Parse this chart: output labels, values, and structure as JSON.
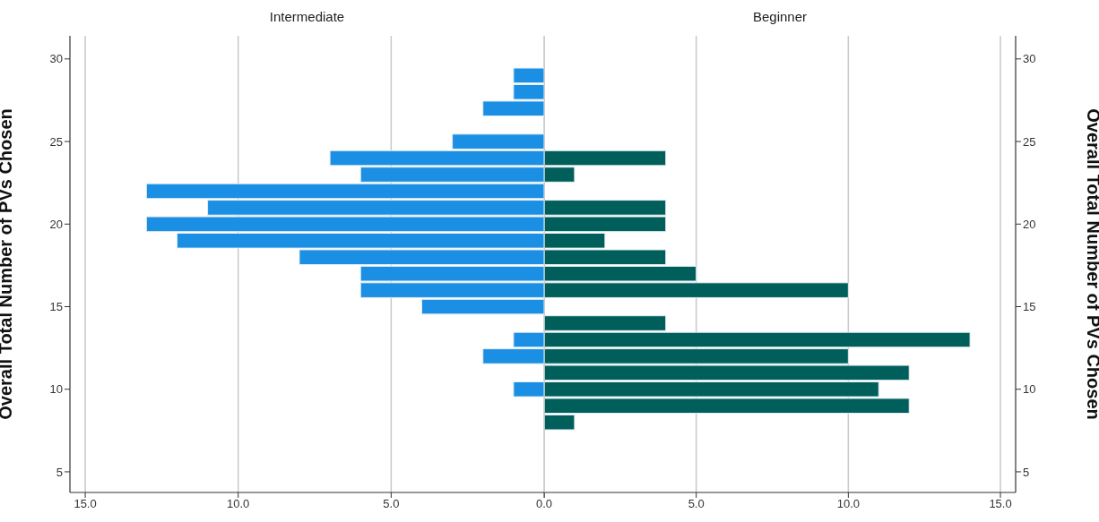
{
  "chart_data": [
    {
      "type": "histogram",
      "title": "Intermediate",
      "orientation": "horizontal",
      "ylabel": "Overall Total Number of PVs Chosen",
      "color": "#1a8fe3",
      "bins": [
        7.5,
        8.5,
        9.5,
        10.5,
        11.5,
        12.5,
        13.5,
        14.5,
        15.5,
        16.5,
        17.5,
        18.5,
        19.5,
        20.5,
        21.5,
        22.5,
        23.5,
        24.5,
        25.5,
        26.5,
        27.5,
        28.5,
        29.5
      ],
      "values": [
        0,
        0,
        1,
        0,
        2,
        1,
        0,
        4,
        6,
        6,
        8,
        12,
        13,
        11,
        13,
        6,
        7,
        3,
        0,
        2,
        1,
        1
      ],
      "xlim": [
        15.5,
        0
      ],
      "xticks": [
        {
          "value": 15,
          "label": "15.0"
        },
        {
          "value": 10,
          "label": "10.0"
        },
        {
          "value": 5,
          "label": "5.0"
        },
        {
          "value": 0,
          "label": "0.0"
        }
      ],
      "ylim": [
        3.75,
        31.4
      ],
      "yticks": [
        5,
        10,
        15,
        20,
        25,
        30
      ],
      "grid": "x"
    },
    {
      "type": "histogram",
      "title": "Beginner",
      "orientation": "horizontal",
      "ylabel": "Overall Total Number of PVs Chosen",
      "color": "#005f5b",
      "bins": [
        7.5,
        8.5,
        9.5,
        10.5,
        11.5,
        12.5,
        13.5,
        14.5,
        15.5,
        16.5,
        17.5,
        18.5,
        19.5,
        20.5,
        21.5,
        22.5,
        23.5,
        24.5,
        25.5,
        26.5,
        27.5,
        28.5,
        29.5
      ],
      "values": [
        1,
        12,
        11,
        12,
        10,
        14,
        4,
        0,
        10,
        5,
        4,
        2,
        4,
        4,
        0,
        1,
        4,
        0,
        0,
        0,
        0,
        0
      ],
      "xlim": [
        0,
        15.5
      ],
      "xticks": [
        {
          "value": 0,
          "label": null
        },
        {
          "value": 5,
          "label": "5.0"
        },
        {
          "value": 10,
          "label": "10.0"
        },
        {
          "value": 15,
          "label": "15.0"
        }
      ],
      "ylim": [
        3.75,
        31.4
      ],
      "yticks": [
        5,
        10,
        15,
        20,
        25,
        30
      ],
      "grid": "x"
    }
  ]
}
